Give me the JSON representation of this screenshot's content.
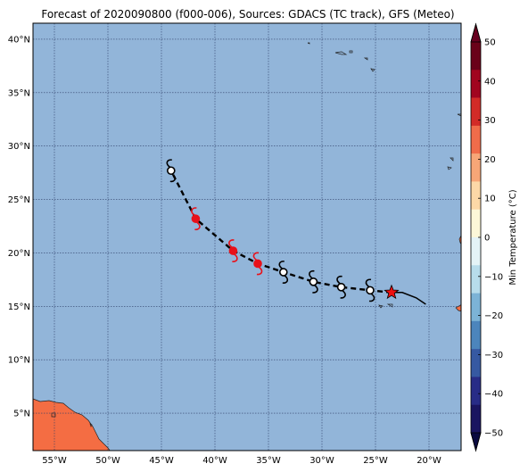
{
  "title": "Forecast of 2020090800 (f000-006), Sources: GDACS (TC track), GFS (Meteo)",
  "map": {
    "lon_range": [
      -57,
      -17
    ],
    "lat_range": [
      1.5,
      41.5
    ],
    "x_ticks": [
      {
        "value": -55,
        "label": "55°W"
      },
      {
        "value": -50,
        "label": "50°W"
      },
      {
        "value": -45,
        "label": "45°W"
      },
      {
        "value": -40,
        "label": "40°W"
      },
      {
        "value": -35,
        "label": "35°W"
      },
      {
        "value": -30,
        "label": "30°W"
      },
      {
        "value": -25,
        "label": "25°W"
      },
      {
        "value": -20,
        "label": "20°W"
      }
    ],
    "y_ticks": [
      {
        "value": 5,
        "label": "5°N"
      },
      {
        "value": 10,
        "label": "10°N"
      },
      {
        "value": 15,
        "label": "15°N"
      },
      {
        "value": 20,
        "label": "20°N"
      },
      {
        "value": 25,
        "label": "25°N"
      },
      {
        "value": 30,
        "label": "30°N"
      },
      {
        "value": 35,
        "label": "35°N"
      },
      {
        "value": 40,
        "label": "40°N"
      }
    ],
    "ocean_color": "#92b5d9",
    "land_color": "#f46d43",
    "grid": true
  },
  "track": {
    "current_position": {
      "lon": -23.5,
      "lat": 16.3
    },
    "observed_path": [
      {
        "lon": -23.5,
        "lat": 16.3
      },
      {
        "lon": -22.5,
        "lat": 16.3
      },
      {
        "lon": -21.2,
        "lat": 15.8
      },
      {
        "lon": -20.3,
        "lat": 15.2
      }
    ],
    "forecast_points": [
      {
        "lon": -25.5,
        "lat": 16.5,
        "color": "white"
      },
      {
        "lon": -28.2,
        "lat": 16.8,
        "color": "white"
      },
      {
        "lon": -30.8,
        "lat": 17.3,
        "color": "white"
      },
      {
        "lon": -33.6,
        "lat": 18.2,
        "color": "white"
      },
      {
        "lon": -36.0,
        "lat": 19.0,
        "color": "red"
      },
      {
        "lon": -38.3,
        "lat": 20.2,
        "color": "red"
      },
      {
        "lon": -41.8,
        "lat": 23.2,
        "color": "red"
      },
      {
        "lon": -44.1,
        "lat": 27.7,
        "color": "white"
      }
    ],
    "star_color": "#ee1111",
    "marker_red": "#e8111a"
  },
  "colorbar": {
    "label": "Min Temperature (°C)",
    "ticks": [
      "50",
      "40",
      "30",
      "20",
      "10",
      "0",
      "−10",
      "−20",
      "−30",
      "−40",
      "−50"
    ],
    "colors": [
      "#6a0119",
      "#a1051f",
      "#d22b27",
      "#f06c4a",
      "#f7a677",
      "#fcd8a7",
      "#fcf7d8",
      "#e4f3f7",
      "#b7dceb",
      "#7cb3d6",
      "#4c85bc",
      "#3659a2",
      "#282c87",
      "#1a1560"
    ]
  }
}
